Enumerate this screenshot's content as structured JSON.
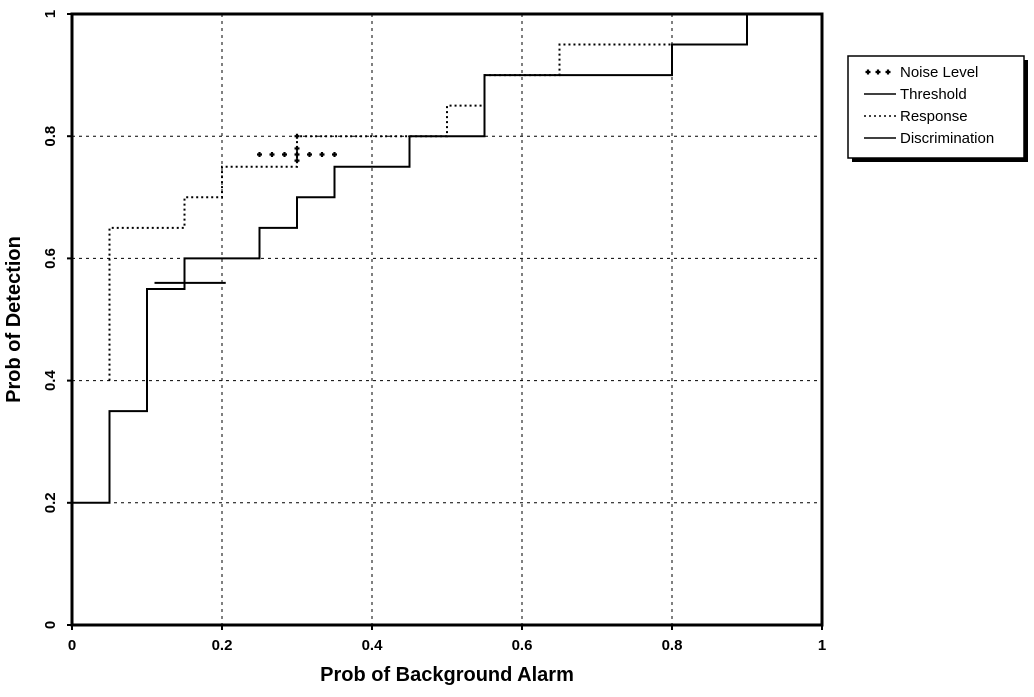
{
  "chart_data": {
    "type": "line",
    "title": "",
    "xlabel": "Prob of Background Alarm",
    "ylabel": "Prob of Detection",
    "xlim": [
      0,
      1
    ],
    "ylim": [
      0,
      1
    ],
    "x_ticks": [
      "0",
      "0.2",
      "0.4",
      "0.6",
      "0.8",
      "1"
    ],
    "y_ticks": [
      "0",
      "0.2",
      "0.4",
      "0.6",
      "0.8",
      "1"
    ],
    "grid": true,
    "legend_position": "outside-right-top",
    "series": [
      {
        "name": "Noise Level",
        "style": "dotted-markers",
        "color": "#000000",
        "points": [
          [
            0.25,
            0.77
          ],
          [
            0.3,
            0.77
          ],
          [
            0.35,
            0.77
          ],
          [
            0.3,
            0.8
          ],
          [
            0.3,
            0.78
          ],
          [
            0.3,
            0.76
          ]
        ]
      },
      {
        "name": "Threshold",
        "style": "solid",
        "color": "#000000",
        "points": [
          [
            0,
            0.2
          ],
          [
            0.05,
            0.2
          ],
          [
            0.05,
            0.35
          ],
          [
            0.1,
            0.35
          ],
          [
            0.1,
            0.55
          ],
          [
            0.15,
            0.55
          ],
          [
            0.15,
            0.6
          ],
          [
            0.25,
            0.6
          ],
          [
            0.25,
            0.65
          ],
          [
            0.3,
            0.65
          ],
          [
            0.3,
            0.7
          ],
          [
            0.35,
            0.7
          ],
          [
            0.35,
            0.75
          ],
          [
            0.45,
            0.75
          ],
          [
            0.45,
            0.8
          ],
          [
            0.55,
            0.8
          ],
          [
            0.55,
            0.9
          ],
          [
            0.8,
            0.9
          ],
          [
            0.8,
            0.95
          ],
          [
            0.9,
            0.95
          ],
          [
            0.9,
            1.0
          ]
        ]
      },
      {
        "name": "Response",
        "style": "dotted",
        "color": "#000000",
        "points": [
          [
            0.05,
            0.4
          ],
          [
            0.05,
            0.65
          ],
          [
            0.15,
            0.65
          ],
          [
            0.15,
            0.7
          ],
          [
            0.2,
            0.7
          ],
          [
            0.2,
            0.75
          ],
          [
            0.3,
            0.75
          ],
          [
            0.3,
            0.8
          ],
          [
            0.5,
            0.8
          ],
          [
            0.5,
            0.85
          ],
          [
            0.55,
            0.85
          ],
          [
            0.55,
            0.9
          ],
          [
            0.65,
            0.9
          ],
          [
            0.65,
            0.95
          ],
          [
            0.9,
            0.95
          ],
          [
            0.9,
            1.0
          ]
        ]
      },
      {
        "name": "Discrimination",
        "style": "solid",
        "color": "#000000",
        "points": [
          [
            0.11,
            0.56
          ],
          [
            0.205,
            0.56
          ]
        ]
      }
    ]
  }
}
